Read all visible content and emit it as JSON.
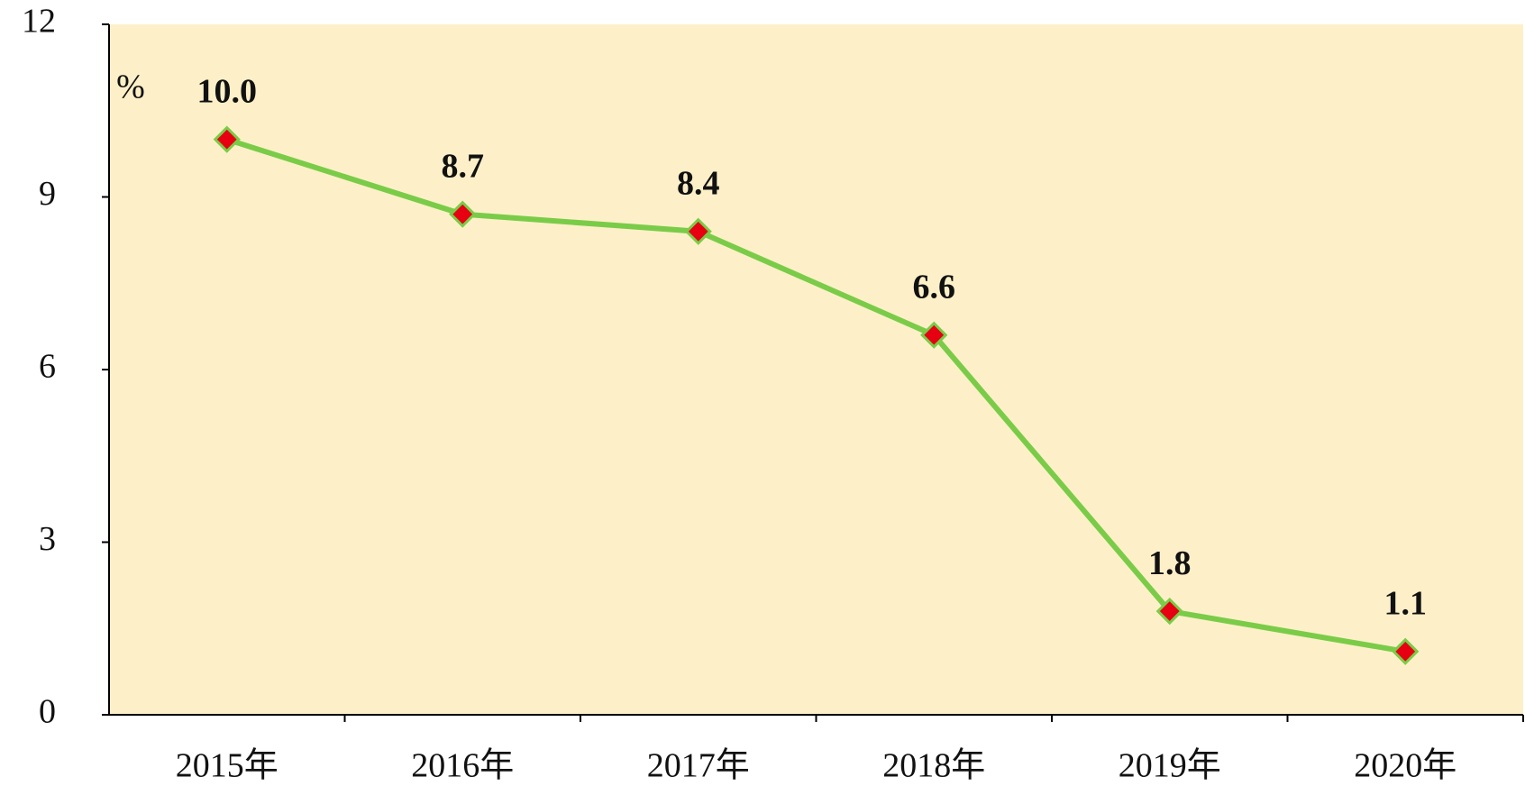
{
  "chart_data": {
    "type": "line",
    "y_label": "%",
    "categories": [
      "2015年",
      "2016年",
      "2017年",
      "2018年",
      "2019年",
      "2020年"
    ],
    "series": [
      {
        "color": "#7acc48",
        "marker_color": "#e60012",
        "values": [
          10.0,
          8.7,
          8.4,
          6.6,
          1.8,
          1.1
        ],
        "value_labels": [
          "10.0",
          "8.7",
          "8.4",
          "6.6",
          "1.8",
          "1.1"
        ]
      }
    ],
    "ylim": [
      0,
      12
    ],
    "yticks": [
      0,
      3,
      6,
      9,
      12
    ],
    "background": "#fdf0c8"
  }
}
